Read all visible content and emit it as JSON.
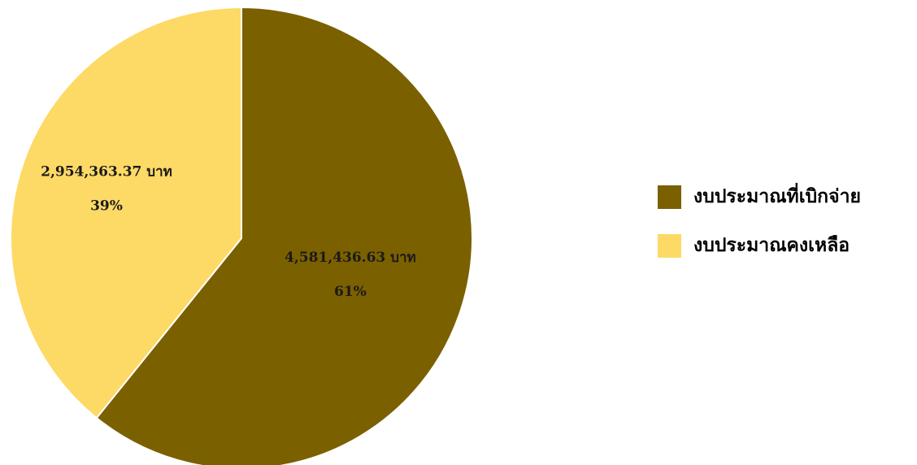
{
  "chart_data": {
    "type": "pie",
    "title": "",
    "unit": "บาท",
    "slices": [
      {
        "name": "งบประมาณที่เบิกจ่าย",
        "value": 4581436.63,
        "value_label": "4,581,436.63 บาท",
        "percent_label": "61%",
        "color": "#7b6000"
      },
      {
        "name": "งบประมาณคงเหลือ",
        "value": 2954363.37,
        "value_label": "2,954,363.37 บาท",
        "percent_label": "39%",
        "color": "#fdd966"
      }
    ],
    "start_angle": "12 o'clock",
    "direction": "clockwise",
    "legend": "right"
  }
}
